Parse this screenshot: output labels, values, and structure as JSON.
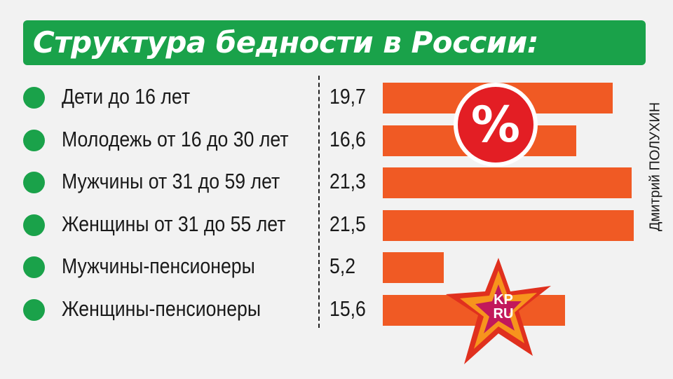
{
  "chart_data": {
    "type": "bar",
    "orientation": "horizontal",
    "title": "Структура бедности в России:",
    "categories": [
      "Дети до 16 лет",
      "Молодежь от 16 до 30 лет",
      "Мужчины от 31 до 59 лет",
      "Женщины от 31 до 55 лет",
      "Мужчины-пенсионеры",
      "Женщины-пенсионеры"
    ],
    "values": [
      19.7,
      16.6,
      21.3,
      21.5,
      5.2,
      15.6
    ],
    "value_labels": [
      "19,7",
      "16,6",
      "21,3",
      "21,5",
      "5,2",
      "15,6"
    ],
    "xlim": [
      0,
      21.5
    ],
    "grid": false,
    "legend": "none"
  },
  "badge": {
    "symbol": "%",
    "icon": "percent-icon"
  },
  "credit": "Дмитрий ПОЛУХИН",
  "logo": {
    "text": "KP.RU",
    "line1": "KP",
    "line2": "RU",
    "icon": "kp-ru-logo"
  },
  "colors": {
    "title_bg": "#1aa24a",
    "bullet": "#1aa24a",
    "bar": "#f05a24",
    "badge": "#e31e24",
    "text": "#1a1a1a",
    "background": "#f2f2f2"
  }
}
